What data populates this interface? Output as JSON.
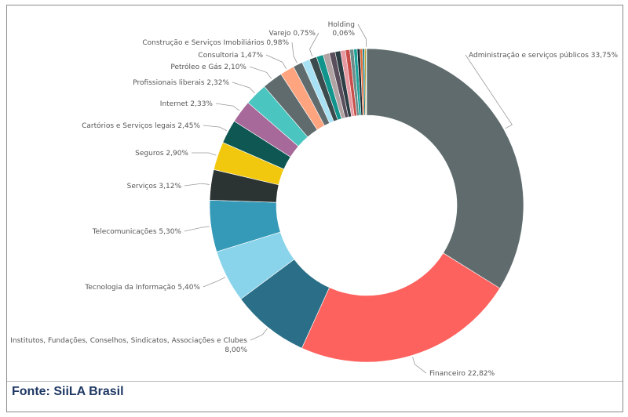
{
  "chart_data": {
    "type": "pie",
    "donut": true,
    "slices": [
      {
        "label": "Administração e serviços públicos 33,75%",
        "value": 33.75,
        "color": "#5f6b6d"
      },
      {
        "label": "Financeiro 22,82%",
        "value": 22.82,
        "color": "#fd625e"
      },
      {
        "label": "Institutos, Fundações, Conselhos, Sindicatos, Associações e Clubes",
        "label2": "8,00%",
        "value": 8.0,
        "color": "#2a6f87"
      },
      {
        "label": "Tecnologia da Informação 5,40%",
        "value": 5.4,
        "color": "#8ad4eb"
      },
      {
        "label": "Telecomunicações 5,30%",
        "value": 5.3,
        "color": "#3599b8"
      },
      {
        "label": "Serviços 3,12%",
        "value": 3.12,
        "color": "#2b3433"
      },
      {
        "label": "Seguros 2,90%",
        "value": 2.9,
        "color": "#f2c80f"
      },
      {
        "label": "Cartórios e Serviços legais 2,45%",
        "value": 2.45,
        "color": "#0f5752"
      },
      {
        "label": "Internet 2,33%",
        "value": 2.33,
        "color": "#a66999"
      },
      {
        "label": "Profissionais liberais 2,32%",
        "value": 2.32,
        "color": "#4bc5c0"
      },
      {
        "label": "Petróleo e Gás 2,10%",
        "value": 2.1,
        "color": "#5f6b6d"
      },
      {
        "label": "Consultoria 1,47%",
        "value": 1.47,
        "color": "#fea47f"
      },
      {
        "label": "Construção e Serviços Imobiliários 0,98%",
        "value": 0.98,
        "color": "#5f6b6d"
      },
      {
        "label": "",
        "value": 0.8,
        "color": "#a8e1f3"
      },
      {
        "label": "Varejo 0,75%",
        "value": 0.75,
        "color": "#3b4a4c"
      },
      {
        "label": "",
        "value": 0.7,
        "color": "#11948c"
      },
      {
        "label": "",
        "value": 0.65,
        "color": "#b1a3a3"
      },
      {
        "label": "",
        "value": 0.6,
        "color": "#5a4e5c"
      },
      {
        "label": "",
        "value": 0.55,
        "color": "#2c3e44"
      },
      {
        "label": "",
        "value": 0.5,
        "color": "#e79aa1"
      },
      {
        "label": "",
        "value": 0.45,
        "color": "#c94d49"
      },
      {
        "label": "",
        "value": 0.4,
        "color": "#6c8c8a"
      },
      {
        "label": "",
        "value": 0.35,
        "color": "#1aa39a"
      },
      {
        "label": "",
        "value": 0.3,
        "color": "#1d2b36"
      },
      {
        "label": "",
        "value": 0.25,
        "color": "#e66c37"
      },
      {
        "label": "",
        "value": 0.2,
        "color": "#0e7c86"
      },
      {
        "label": "",
        "value": 0.15,
        "color": "#b59d27"
      },
      {
        "label": "Holding",
        "label2": "0,06%",
        "value": 0.06,
        "color": "#d9b300"
      }
    ]
  },
  "source": "Fonte: SiiLA Brasil",
  "colors": {
    "frame": "#8c8c8c",
    "source_text": "#1f3864"
  }
}
